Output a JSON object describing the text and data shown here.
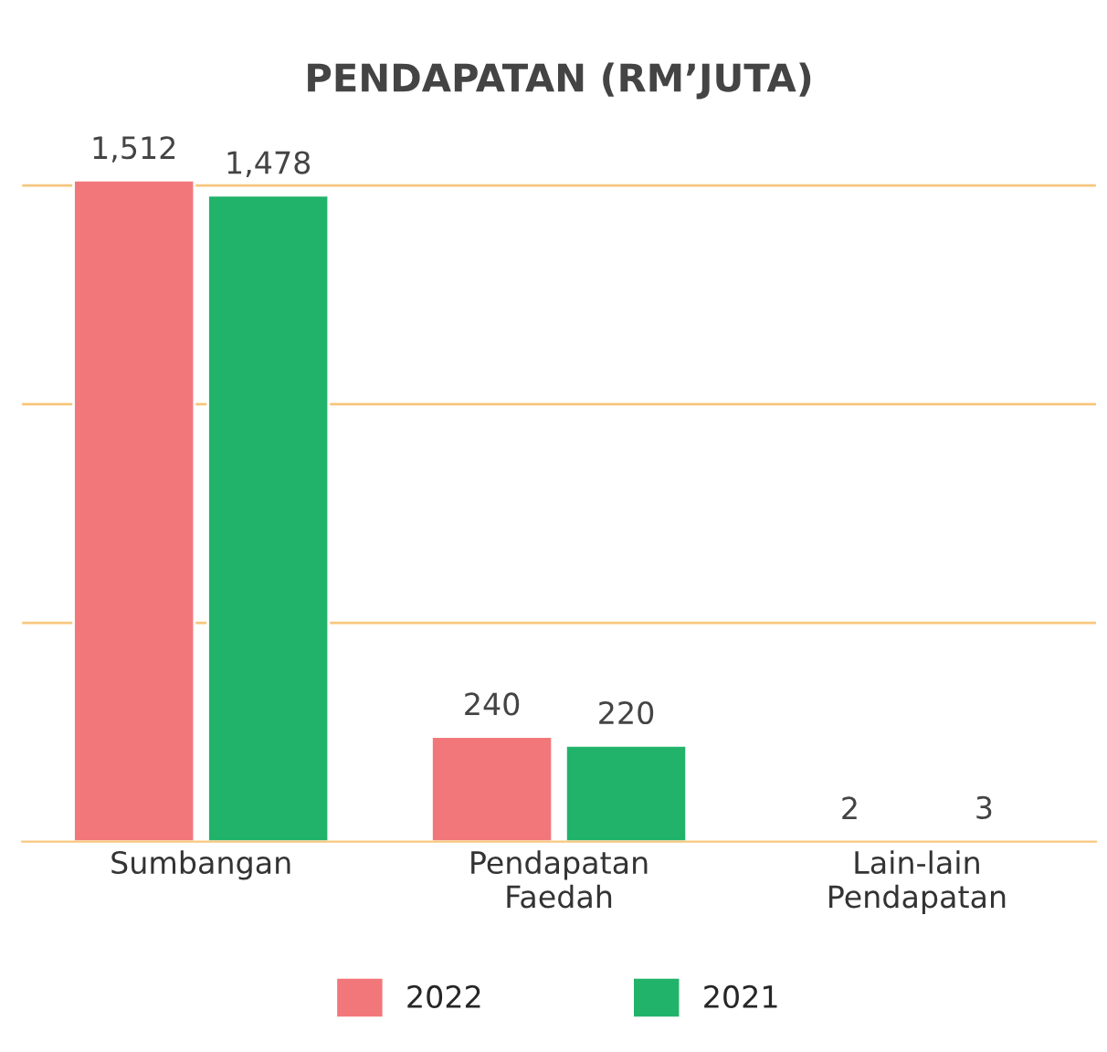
{
  "chart_data": {
    "type": "bar",
    "title": "PENDAPATAN (RM’JUTA)",
    "categories": [
      "Sumbangan",
      "Pendapatan\nFaedah",
      "Lain-lain\nPendapatan"
    ],
    "series": [
      {
        "name": "2022",
        "color": "#f2777a",
        "values": [
          1512,
          240,
          2
        ],
        "value_labels": [
          "1,512",
          "240",
          "2"
        ]
      },
      {
        "name": "2021",
        "color": "#22b36b",
        "values": [
          1478,
          220,
          3
        ],
        "value_labels": [
          "1,478",
          "220",
          "3"
        ]
      }
    ],
    "ref_lines": [
      {
        "axis": "y",
        "value": 500,
        "color": "#f7c77e"
      },
      {
        "axis": "y",
        "value": 1000,
        "color": "#f7c77e"
      },
      {
        "axis": "y",
        "value": 1500,
        "color": "#f7c77e"
      }
    ],
    "tick_labels": "x",
    "legend": "bottom",
    "data_labels": true
  }
}
